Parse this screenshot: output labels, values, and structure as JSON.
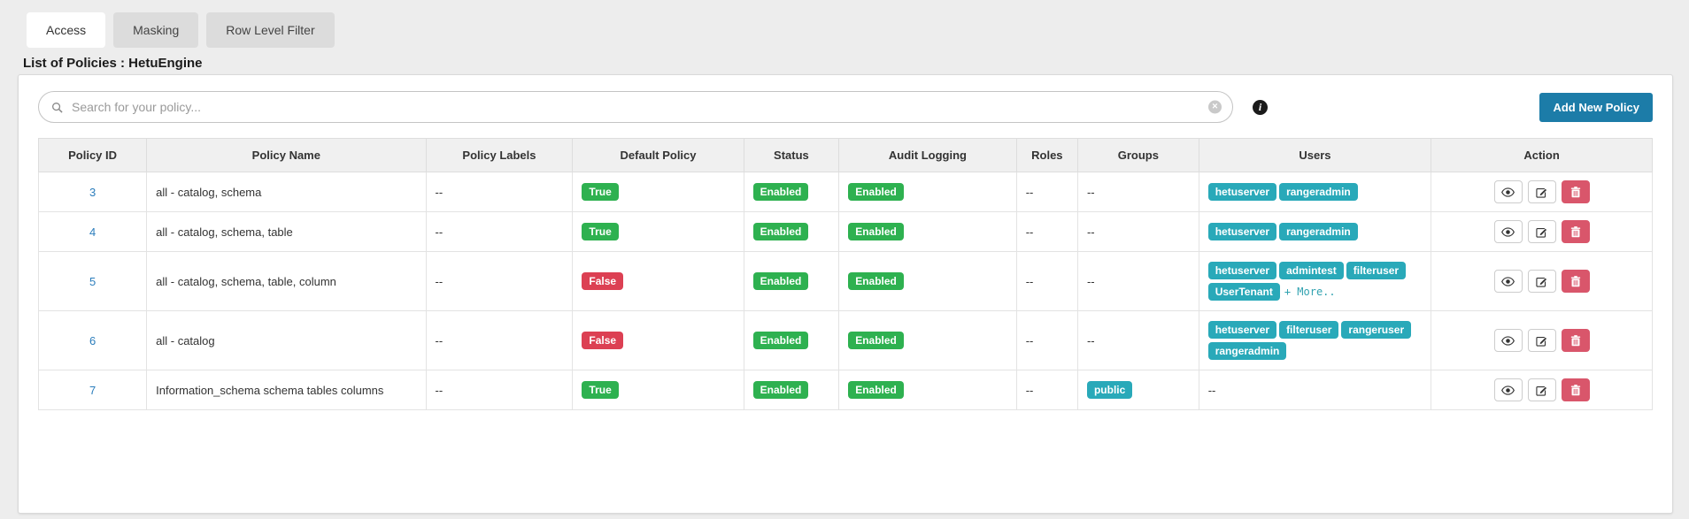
{
  "tabs": [
    {
      "label": "Access",
      "active": true
    },
    {
      "label": "Masking",
      "active": false
    },
    {
      "label": "Row Level Filter",
      "active": false
    }
  ],
  "page_title": "List of Policies : HetuEngine",
  "search": {
    "placeholder": "Search for your policy..."
  },
  "icons": {
    "info_glyph": "i",
    "clear_glyph": "×"
  },
  "toolbar": {
    "add_policy_label": "Add New Policy"
  },
  "colors": {
    "accent_blue": "#1c7ca8",
    "badge_green": "#2eb150",
    "badge_red": "#dc4053",
    "badge_teal": "#29a9b9",
    "delete_red": "#d9566b",
    "link_blue": "#2b7dbc"
  },
  "table": {
    "headers": [
      "Policy ID",
      "Policy Name",
      "Policy Labels",
      "Default Policy",
      "Status",
      "Audit Logging",
      "Roles",
      "Groups",
      "Users",
      "Action"
    ],
    "rows": [
      {
        "id": "3",
        "name": "all - catalog, schema",
        "labels": "--",
        "default_policy": {
          "text": "True",
          "variant": "green"
        },
        "status": {
          "text": "Enabled",
          "variant": "green"
        },
        "audit": {
          "text": "Enabled",
          "variant": "green"
        },
        "roles": "--",
        "groups": "--",
        "users": [
          "hetuserver",
          "rangeradmin"
        ],
        "users_more": ""
      },
      {
        "id": "4",
        "name": "all - catalog, schema, table",
        "labels": "--",
        "default_policy": {
          "text": "True",
          "variant": "green"
        },
        "status": {
          "text": "Enabled",
          "variant": "green"
        },
        "audit": {
          "text": "Enabled",
          "variant": "green"
        },
        "roles": "--",
        "groups": "--",
        "users": [
          "hetuserver",
          "rangeradmin"
        ],
        "users_more": ""
      },
      {
        "id": "5",
        "name": "all - catalog, schema, table, column",
        "labels": "--",
        "default_policy": {
          "text": "False",
          "variant": "red"
        },
        "status": {
          "text": "Enabled",
          "variant": "green"
        },
        "audit": {
          "text": "Enabled",
          "variant": "green"
        },
        "roles": "--",
        "groups": "--",
        "users": [
          "hetuserver",
          "admintest",
          "filteruser",
          "UserTenant"
        ],
        "users_more": "+ More.."
      },
      {
        "id": "6",
        "name": "all - catalog",
        "labels": "--",
        "default_policy": {
          "text": "False",
          "variant": "red"
        },
        "status": {
          "text": "Enabled",
          "variant": "green"
        },
        "audit": {
          "text": "Enabled",
          "variant": "green"
        },
        "roles": "--",
        "groups": "--",
        "users": [
          "hetuserver",
          "filteruser",
          "rangeruser",
          "rangeradmin"
        ],
        "users_more": ""
      },
      {
        "id": "7",
        "name": "Information_schema schema tables columns",
        "labels": "--",
        "default_policy": {
          "text": "True",
          "variant": "green"
        },
        "status": {
          "text": "Enabled",
          "variant": "green"
        },
        "audit": {
          "text": "Enabled",
          "variant": "green"
        },
        "roles": "--",
        "groups": [
          "public"
        ],
        "users": "--",
        "users_more": ""
      }
    ]
  }
}
